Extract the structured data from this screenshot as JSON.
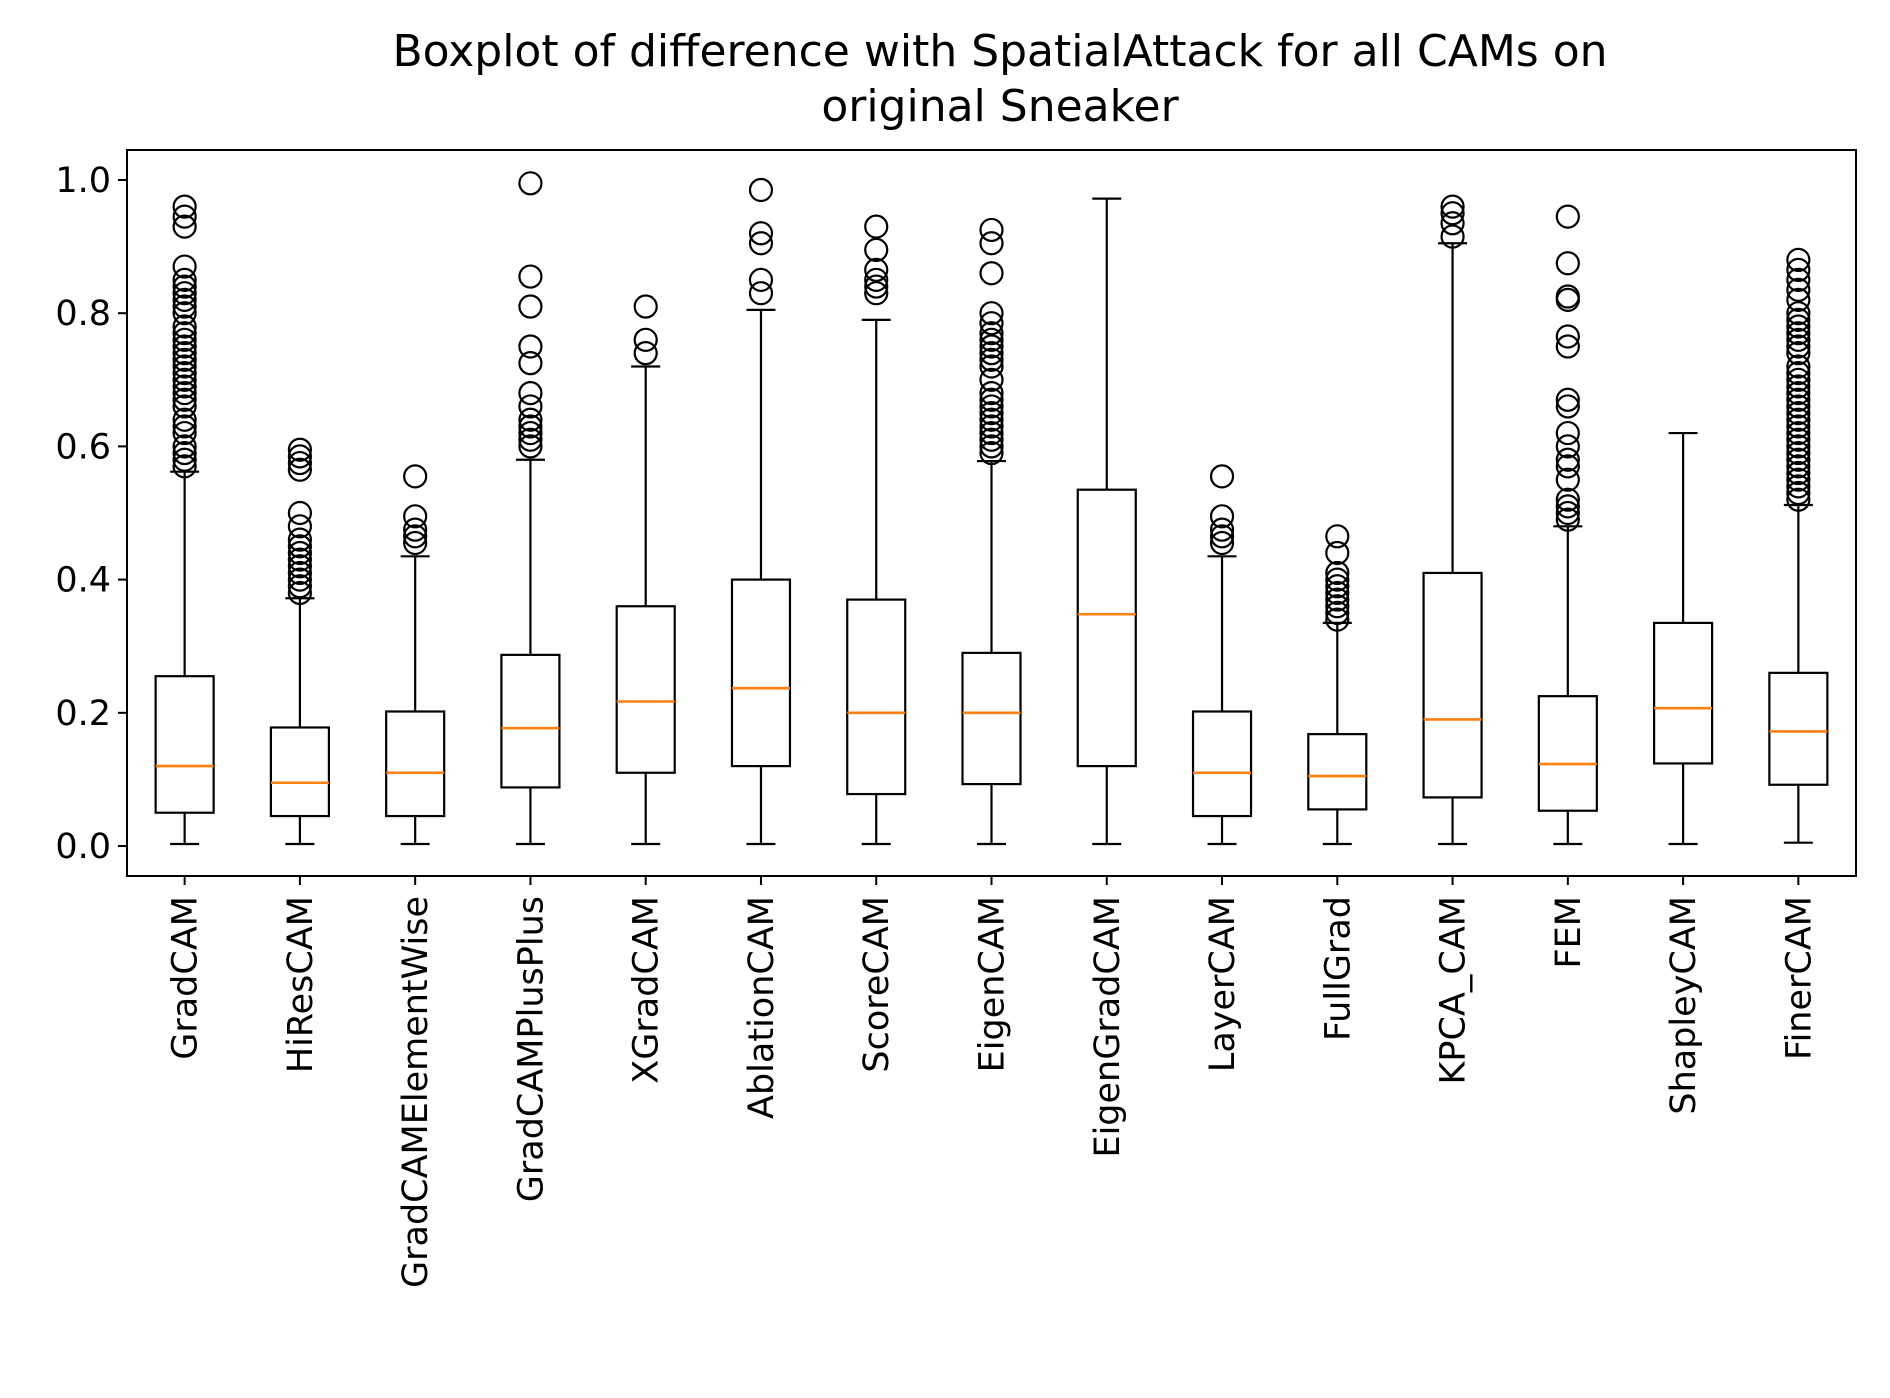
{
  "chart_data": {
    "type": "boxplot",
    "title_lines": [
      "Boxplot of difference with SpatialAttack for all CAMs on",
      "original Sneaker"
    ],
    "xlabel": "",
    "ylabel": "",
    "ylim": [
      -0.045,
      1.045
    ],
    "yticks": [
      0.0,
      0.2,
      0.4,
      0.6,
      0.8,
      1.0
    ],
    "ytick_labels": [
      "0.0",
      "0.2",
      "0.4",
      "0.6",
      "0.8",
      "1.0"
    ],
    "grid": false,
    "legend": "none",
    "colors": {
      "box": "#000000",
      "median": "#ff7f0e",
      "outlier": "#000000"
    },
    "categories": [
      "GradCAM",
      "HiResCAM",
      "GradCAMElementWise",
      "GradCAMPlusPlus",
      "XGradCAM",
      "AblationCAM",
      "ScoreCAM",
      "EigenCAM",
      "EigenGradCAM",
      "LayerCAM",
      "FullGrad",
      "KPCA_CAM",
      "FEM",
      "ShapleyCAM",
      "FinerCAM"
    ],
    "boxes": [
      {
        "whislo": 0.003,
        "q1": 0.05,
        "med": 0.12,
        "q3": 0.255,
        "whishi": 0.562,
        "fliers": [
          0.96,
          0.945,
          0.93,
          0.87,
          0.85,
          0.84,
          0.83,
          0.82,
          0.81,
          0.8,
          0.78,
          0.77,
          0.76,
          0.75,
          0.74,
          0.73,
          0.72,
          0.71,
          0.7,
          0.69,
          0.68,
          0.67,
          0.66,
          0.64,
          0.63,
          0.62,
          0.6,
          0.59,
          0.58,
          0.57
        ]
      },
      {
        "whislo": 0.003,
        "q1": 0.045,
        "med": 0.095,
        "q3": 0.178,
        "whishi": 0.372,
        "fliers": [
          0.595,
          0.585,
          0.575,
          0.565,
          0.5,
          0.48,
          0.46,
          0.45,
          0.44,
          0.43,
          0.42,
          0.41,
          0.4,
          0.39,
          0.38
        ]
      },
      {
        "whislo": 0.003,
        "q1": 0.045,
        "med": 0.11,
        "q3": 0.202,
        "whishi": 0.435,
        "fliers": [
          0.555,
          0.495,
          0.475,
          0.465,
          0.455
        ]
      },
      {
        "whislo": 0.003,
        "q1": 0.088,
        "med": 0.177,
        "q3": 0.287,
        "whishi": 0.58,
        "fliers": [
          0.995,
          0.855,
          0.81,
          0.75,
          0.725,
          0.68,
          0.66,
          0.64,
          0.63,
          0.62,
          0.61,
          0.6
        ]
      },
      {
        "whislo": 0.003,
        "q1": 0.11,
        "med": 0.217,
        "q3": 0.36,
        "whishi": 0.72,
        "fliers": [
          0.81,
          0.76,
          0.74
        ]
      },
      {
        "whislo": 0.003,
        "q1": 0.12,
        "med": 0.237,
        "q3": 0.4,
        "whishi": 0.805,
        "fliers": [
          0.985,
          0.92,
          0.905,
          0.85,
          0.83
        ]
      },
      {
        "whislo": 0.003,
        "q1": 0.078,
        "med": 0.2,
        "q3": 0.37,
        "whishi": 0.79,
        "fliers": [
          0.93,
          0.895,
          0.865,
          0.85,
          0.84,
          0.83
        ]
      },
      {
        "whislo": 0.003,
        "q1": 0.093,
        "med": 0.2,
        "q3": 0.29,
        "whishi": 0.578,
        "fliers": [
          0.925,
          0.905,
          0.86,
          0.8,
          0.785,
          0.77,
          0.76,
          0.75,
          0.74,
          0.73,
          0.72,
          0.7,
          0.68,
          0.67,
          0.66,
          0.65,
          0.64,
          0.63,
          0.62,
          0.61,
          0.6,
          0.59
        ]
      },
      {
        "whislo": 0.003,
        "q1": 0.12,
        "med": 0.348,
        "q3": 0.535,
        "whishi": 0.972,
        "fliers": []
      },
      {
        "whislo": 0.003,
        "q1": 0.045,
        "med": 0.11,
        "q3": 0.202,
        "whishi": 0.435,
        "fliers": [
          0.555,
          0.495,
          0.475,
          0.465,
          0.455
        ]
      },
      {
        "whislo": 0.003,
        "q1": 0.055,
        "med": 0.105,
        "q3": 0.168,
        "whishi": 0.335,
        "fliers": [
          0.465,
          0.44,
          0.41,
          0.4,
          0.39,
          0.38,
          0.37,
          0.36,
          0.35,
          0.34
        ]
      },
      {
        "whislo": 0.003,
        "q1": 0.073,
        "med": 0.19,
        "q3": 0.41,
        "whishi": 0.905,
        "fliers": [
          0.96,
          0.95,
          0.935,
          0.915
        ]
      },
      {
        "whislo": 0.003,
        "q1": 0.053,
        "med": 0.123,
        "q3": 0.225,
        "whishi": 0.48,
        "fliers": [
          0.945,
          0.875,
          0.825,
          0.82,
          0.765,
          0.75,
          0.67,
          0.66,
          0.62,
          0.6,
          0.58,
          0.57,
          0.55,
          0.52,
          0.51,
          0.5,
          0.49
        ]
      },
      {
        "whislo": 0.003,
        "q1": 0.124,
        "med": 0.207,
        "q3": 0.335,
        "whishi": 0.62,
        "fliers": []
      },
      {
        "whislo": 0.005,
        "q1": 0.092,
        "med": 0.172,
        "q3": 0.26,
        "whishi": 0.512,
        "fliers": [
          0.88,
          0.865,
          0.85,
          0.835,
          0.82,
          0.8,
          0.79,
          0.78,
          0.77,
          0.76,
          0.75,
          0.74,
          0.72,
          0.71,
          0.7,
          0.69,
          0.68,
          0.67,
          0.66,
          0.65,
          0.64,
          0.63,
          0.62,
          0.61,
          0.6,
          0.59,
          0.58,
          0.57,
          0.56,
          0.55,
          0.54,
          0.53,
          0.52
        ]
      }
    ]
  }
}
